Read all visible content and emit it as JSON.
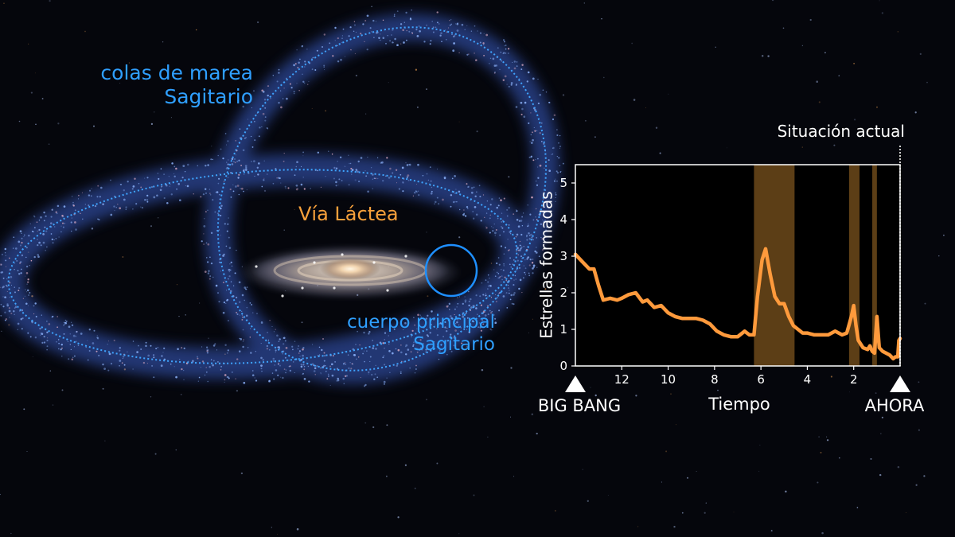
{
  "labels": {
    "tidal_tails": [
      "colas de marea",
      "Sagitario"
    ],
    "milky_way": "Vía Láctea",
    "sgr_core": [
      "cuerpo principal",
      "Sagitario"
    ]
  },
  "colors": {
    "background": "#05060c",
    "blue_label": "#2f9fff",
    "orange_label": "#f6a03b",
    "line": "#ff9a3c",
    "shade": "#f2a33a"
  },
  "chart_data": {
    "type": "line",
    "xlabel": "Tiempo",
    "ylabel": "Estrellas formadas",
    "x_reversed": true,
    "xlim": [
      14.0,
      0.0
    ],
    "ylim": [
      0,
      5.5
    ],
    "xticks": [
      12,
      10,
      8,
      6,
      4,
      2
    ],
    "yticks": [
      0,
      1,
      2,
      3,
      4,
      5
    ],
    "annotation_top": "Situación actual",
    "start_marker": "BIG BANG",
    "end_marker": "AHORA",
    "shaded_intervals": [
      [
        6.3,
        4.55
      ],
      [
        2.2,
        1.75
      ],
      [
        1.2,
        1.0
      ]
    ],
    "x": [
      14.0,
      13.7,
      13.4,
      13.2,
      13.0,
      12.8,
      12.5,
      12.2,
      12.0,
      11.7,
      11.4,
      11.1,
      10.9,
      10.6,
      10.3,
      10.0,
      9.7,
      9.4,
      9.1,
      8.8,
      8.5,
      8.2,
      7.9,
      7.6,
      7.3,
      7.0,
      6.7,
      6.5,
      6.3,
      6.15,
      5.95,
      5.8,
      5.6,
      5.4,
      5.2,
      5.0,
      4.8,
      4.6,
      4.4,
      4.2,
      4.0,
      3.7,
      3.4,
      3.1,
      2.8,
      2.5,
      2.3,
      2.1,
      2.0,
      1.9,
      1.8,
      1.6,
      1.4,
      1.3,
      1.2,
      1.1,
      1.0,
      0.9,
      0.75,
      0.6,
      0.45,
      0.3,
      0.2,
      0.1,
      0.05,
      0.0
    ],
    "series": [
      {
        "values": [
          3.05,
          2.85,
          2.65,
          2.65,
          2.2,
          1.8,
          1.85,
          1.8,
          1.85,
          1.95,
          2.0,
          1.75,
          1.8,
          1.6,
          1.65,
          1.45,
          1.35,
          1.3,
          1.3,
          1.3,
          1.25,
          1.15,
          0.95,
          0.85,
          0.8,
          0.8,
          0.95,
          0.85,
          0.85,
          1.9,
          2.9,
          3.2,
          2.5,
          1.9,
          1.7,
          1.7,
          1.35,
          1.1,
          1.0,
          0.9,
          0.9,
          0.85,
          0.85,
          0.85,
          0.95,
          0.85,
          0.9,
          1.35,
          1.65,
          1.1,
          0.7,
          0.5,
          0.45,
          0.55,
          0.4,
          0.35,
          1.35,
          0.5,
          0.4,
          0.35,
          0.3,
          0.2,
          0.25,
          0.25,
          0.7,
          0.75
        ]
      }
    ]
  }
}
